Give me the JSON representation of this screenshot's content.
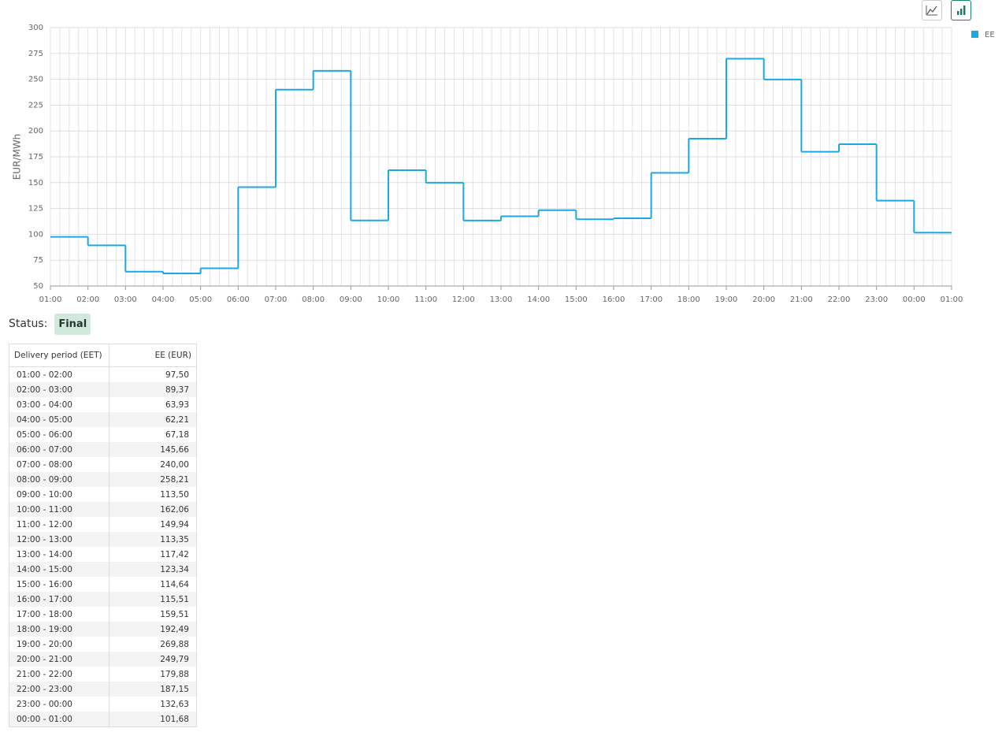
{
  "chart_data": {
    "type": "step",
    "y_label": "EUR/MWh",
    "xticks": [
      "01:00",
      "02:00",
      "03:00",
      "04:00",
      "05:00",
      "06:00",
      "07:00",
      "08:00",
      "09:00",
      "10:00",
      "11:00",
      "12:00",
      "13:00",
      "14:00",
      "15:00",
      "16:00",
      "17:00",
      "18:00",
      "19:00",
      "20:00",
      "21:00",
      "22:00",
      "23:00",
      "00:00",
      "01:00"
    ],
    "series": [
      {
        "name": "EE",
        "color": "#1ba9e6",
        "values": [
          97.5,
          89.37,
          63.93,
          62.21,
          67.18,
          145.66,
          240.0,
          258.21,
          113.5,
          162.06,
          149.94,
          113.35,
          117.42,
          123.34,
          114.64,
          115.51,
          159.51,
          192.49,
          269.88,
          249.79,
          179.88,
          187.15,
          132.63,
          101.68
        ]
      }
    ],
    "ylim": [
      50,
      300
    ],
    "yticks": [
      50,
      75,
      100,
      125,
      150,
      175,
      200,
      225,
      250,
      275,
      300
    ],
    "grid": true
  },
  "status": {
    "label": "Status:",
    "value": "Final"
  },
  "table": {
    "headers": [
      "Delivery period (EET)",
      "EE (EUR)"
    ],
    "rows": [
      [
        "01:00 - 02:00",
        "97,50"
      ],
      [
        "02:00 - 03:00",
        "89,37"
      ],
      [
        "03:00 - 04:00",
        "63,93"
      ],
      [
        "04:00 - 05:00",
        "62,21"
      ],
      [
        "05:00 - 06:00",
        "67,18"
      ],
      [
        "06:00 - 07:00",
        "145,66"
      ],
      [
        "07:00 - 08:00",
        "240,00"
      ],
      [
        "08:00 - 09:00",
        "258,21"
      ],
      [
        "09:00 - 10:00",
        "113,50"
      ],
      [
        "10:00 - 11:00",
        "162,06"
      ],
      [
        "11:00 - 12:00",
        "149,94"
      ],
      [
        "12:00 - 13:00",
        "113,35"
      ],
      [
        "13:00 - 14:00",
        "117,42"
      ],
      [
        "14:00 - 15:00",
        "123,34"
      ],
      [
        "15:00 - 16:00",
        "114,64"
      ],
      [
        "16:00 - 17:00",
        "115,51"
      ],
      [
        "17:00 - 18:00",
        "159,51"
      ],
      [
        "18:00 - 19:00",
        "192,49"
      ],
      [
        "19:00 - 20:00",
        "269,88"
      ],
      [
        "20:00 - 21:00",
        "249,79"
      ],
      [
        "21:00 - 22:00",
        "179,88"
      ],
      [
        "22:00 - 23:00",
        "187,15"
      ],
      [
        "23:00 - 00:00",
        "132,63"
      ],
      [
        "00:00 - 01:00",
        "101,68"
      ]
    ]
  }
}
